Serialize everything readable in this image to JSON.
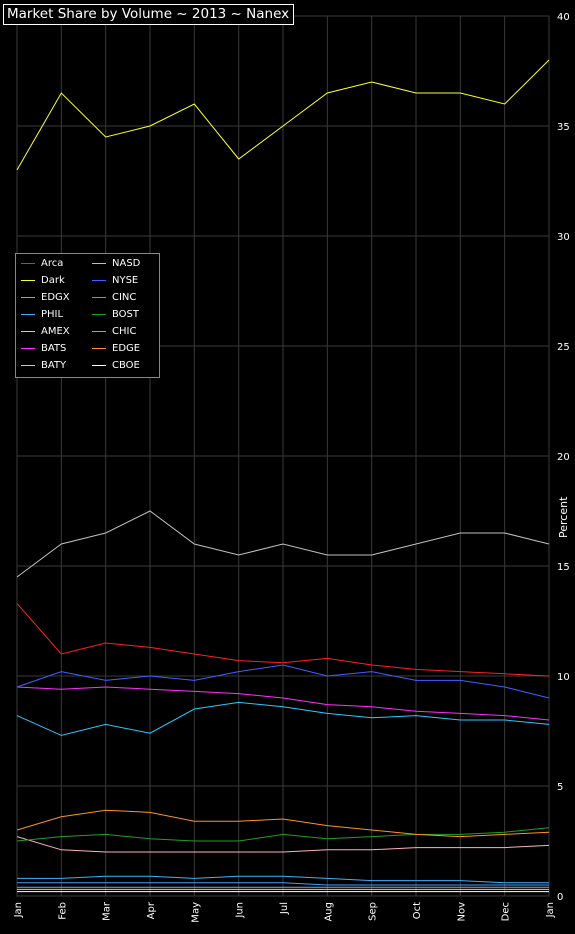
{
  "chart_data": {
    "type": "line",
    "title": "Market Share by Volume ~ 2013 ~ Nanex",
    "ylabel": "Percent",
    "xlabel": "",
    "ylim": [
      0,
      40
    ],
    "y_ticks": [
      "0",
      "5",
      "10",
      "15",
      "20",
      "25",
      "30",
      "35",
      "40"
    ],
    "x_ticks": [
      "Jan",
      "Feb",
      "Mar",
      "Apr",
      "May",
      "Jun",
      "Jul",
      "Aug",
      "Sep",
      "Oct",
      "Nov",
      "Dec",
      "Jan"
    ],
    "grid": true,
    "legend_position": "left",
    "x": [
      "Jan",
      "Feb",
      "Mar",
      "Apr",
      "May",
      "Jun",
      "Jul",
      "Aug",
      "Sep",
      "Oct",
      "Nov",
      "Dec",
      "Jan"
    ],
    "series": [
      {
        "name": "Arca",
        "color": "#ff2020",
        "values": [
          13.3,
          11.0,
          11.5,
          11.3,
          11.0,
          10.7,
          10.6,
          10.8,
          10.5,
          10.3,
          10.2,
          10.1,
          10.0
        ]
      },
      {
        "name": "Dark",
        "color": "#ffff30",
        "values": [
          33.0,
          36.5,
          34.5,
          35.0,
          36.0,
          33.5,
          35.0,
          36.5,
          37.0,
          36.5,
          36.5,
          36.0,
          38.0
        ]
      },
      {
        "name": "EDGX",
        "color": "#30c8ff",
        "values": [
          8.2,
          7.3,
          7.8,
          7.4,
          8.5,
          8.8,
          8.6,
          8.3,
          8.1,
          8.2,
          8.0,
          8.0,
          7.8
        ]
      },
      {
        "name": "PHIL",
        "color": "#40b0ff",
        "values": [
          0.8,
          0.8,
          0.9,
          0.9,
          0.8,
          0.9,
          0.9,
          0.8,
          0.7,
          0.7,
          0.7,
          0.6,
          0.6
        ]
      },
      {
        "name": "AMEX",
        "color": "#ffc080",
        "values": [
          0.3,
          0.3,
          0.3,
          0.3,
          0.3,
          0.3,
          0.3,
          0.3,
          0.3,
          0.3,
          0.3,
          0.3,
          0.3
        ]
      },
      {
        "name": "BATS",
        "color": "#ff30ff",
        "values": [
          9.5,
          9.4,
          9.5,
          9.4,
          9.3,
          9.2,
          9.0,
          8.7,
          8.6,
          8.4,
          8.3,
          8.2,
          8.0
        ]
      },
      {
        "name": "BATY",
        "color": "#ffb0c0",
        "values": [
          2.7,
          2.1,
          2.0,
          2.0,
          2.0,
          2.0,
          2.0,
          2.1,
          2.1,
          2.2,
          2.2,
          2.2,
          2.3
        ]
      },
      {
        "name": "NASD",
        "color": "#c0c0c0",
        "values": [
          14.5,
          16.0,
          16.5,
          17.5,
          16.0,
          15.5,
          16.0,
          15.5,
          15.5,
          16.0,
          16.5,
          16.5,
          16.0
        ]
      },
      {
        "name": "NYSE",
        "color": "#4060ff",
        "values": [
          9.5,
          10.2,
          9.8,
          10.0,
          9.8,
          10.2,
          10.5,
          10.0,
          10.2,
          9.8,
          9.8,
          9.5,
          9.0
        ]
      },
      {
        "name": "CINC",
        "color": "#40a0ff",
        "values": [
          0.6,
          0.6,
          0.6,
          0.6,
          0.6,
          0.6,
          0.6,
          0.5,
          0.5,
          0.5,
          0.5,
          0.5,
          0.5
        ]
      },
      {
        "name": "BOST",
        "color": "#20a020",
        "values": [
          2.5,
          2.7,
          2.8,
          2.6,
          2.5,
          2.5,
          2.8,
          2.6,
          2.7,
          2.8,
          2.8,
          2.9,
          3.1
        ]
      },
      {
        "name": "CHIC",
        "color": "#80a0ff",
        "values": [
          0.4,
          0.4,
          0.4,
          0.4,
          0.4,
          0.4,
          0.4,
          0.4,
          0.4,
          0.4,
          0.4,
          0.4,
          0.4
        ]
      },
      {
        "name": "EDGE",
        "color": "#ff9030",
        "values": [
          3.0,
          3.6,
          3.9,
          3.8,
          3.4,
          3.4,
          3.5,
          3.2,
          3.0,
          2.8,
          2.7,
          2.8,
          2.9
        ]
      },
      {
        "name": "CBOE",
        "color": "#ffffff",
        "values": [
          0.2,
          0.2,
          0.2,
          0.2,
          0.2,
          0.2,
          0.2,
          0.2,
          0.2,
          0.2,
          0.2,
          0.2,
          0.2
        ]
      }
    ]
  }
}
